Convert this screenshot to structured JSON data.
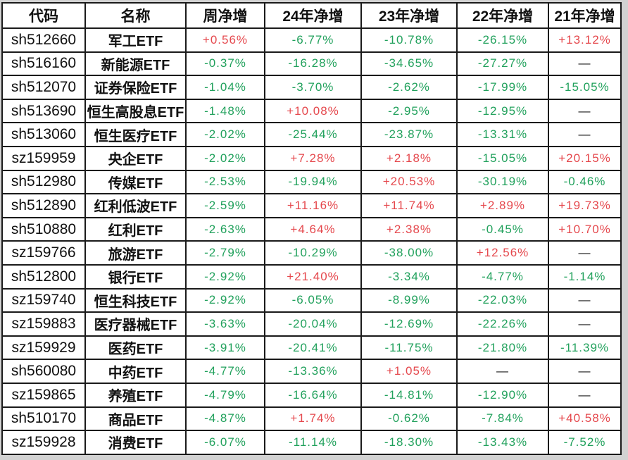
{
  "page": {
    "background_color": "#d2d2d2",
    "grid_color": "#1a1a1a",
    "cell_background": "#ffffff"
  },
  "colors": {
    "positive_text": "#e5484d",
    "negative_text": "#21a15c",
    "neutral_text": "#1a1a1a",
    "header_text": "#111111"
  },
  "table": {
    "columns": [
      "代码",
      "名称",
      "周净增",
      "24年净增",
      "23年净增",
      "22年净增",
      "21年净增"
    ],
    "missing_placeholder": "—",
    "rows": [
      {
        "code": "sh512660",
        "name": "军工ETF",
        "values": [
          "+0.56%",
          "-6.77%",
          "-10.78%",
          "-26.15%",
          "+13.12%"
        ]
      },
      {
        "code": "sh516160",
        "name": "新能源ETF",
        "values": [
          "-0.37%",
          "-16.28%",
          "-34.65%",
          "-27.27%",
          "—"
        ]
      },
      {
        "code": "sh512070",
        "name": "证券保险ETF",
        "values": [
          "-1.04%",
          "-3.70%",
          "-2.62%",
          "-17.99%",
          "-15.05%"
        ]
      },
      {
        "code": "sh513690",
        "name": "恒生高股息ETF",
        "values": [
          "-1.48%",
          "+10.08%",
          "-2.95%",
          "-12.95%",
          "—"
        ]
      },
      {
        "code": "sh513060",
        "name": "恒生医疗ETF",
        "values": [
          "-2.02%",
          "-25.44%",
          "-23.87%",
          "-13.31%",
          "—"
        ]
      },
      {
        "code": "sz159959",
        "name": "央企ETF",
        "values": [
          "-2.02%",
          "+7.28%",
          "+2.18%",
          "-15.05%",
          "+20.15%"
        ]
      },
      {
        "code": "sh512980",
        "name": "传媒ETF",
        "values": [
          "-2.53%",
          "-19.94%",
          "+20.53%",
          "-30.19%",
          "-0.46%"
        ]
      },
      {
        "code": "sh512890",
        "name": "红利低波ETF",
        "values": [
          "-2.59%",
          "+11.16%",
          "+11.74%",
          "+2.89%",
          "+19.73%"
        ]
      },
      {
        "code": "sh510880",
        "name": "红利ETF",
        "values": [
          "-2.63%",
          "+4.64%",
          "+2.38%",
          "-0.45%",
          "+10.70%"
        ]
      },
      {
        "code": "sz159766",
        "name": "旅游ETF",
        "values": [
          "-2.79%",
          "-10.29%",
          "-38.00%",
          "+12.56%",
          "—"
        ]
      },
      {
        "code": "sh512800",
        "name": "银行ETF",
        "values": [
          "-2.92%",
          "+21.40%",
          "-3.34%",
          "-4.77%",
          "-1.14%"
        ]
      },
      {
        "code": "sz159740",
        "name": "恒生科技ETF",
        "values": [
          "-2.92%",
          "-6.05%",
          "-8.99%",
          "-22.03%",
          "—"
        ]
      },
      {
        "code": "sz159883",
        "name": "医疗器械ETF",
        "values": [
          "-3.63%",
          "-20.04%",
          "-12.69%",
          "-22.26%",
          "—"
        ]
      },
      {
        "code": "sz159929",
        "name": "医药ETF",
        "values": [
          "-3.91%",
          "-20.41%",
          "-11.75%",
          "-21.80%",
          "-11.39%"
        ]
      },
      {
        "code": "sh560080",
        "name": "中药ETF",
        "values": [
          "-4.77%",
          "-13.36%",
          "+1.05%",
          "—",
          "—"
        ]
      },
      {
        "code": "sz159865",
        "name": "养殖ETF",
        "values": [
          "-4.79%",
          "-16.64%",
          "-14.81%",
          "-12.90%",
          "—"
        ]
      },
      {
        "code": "sh510170",
        "name": "商品ETF",
        "values": [
          "-4.87%",
          "+1.74%",
          "-0.62%",
          "-7.84%",
          "+40.58%"
        ]
      },
      {
        "code": "sz159928",
        "name": "消费ETF",
        "values": [
          "-6.07%",
          "-11.14%",
          "-18.30%",
          "-13.43%",
          "-7.52%"
        ]
      }
    ]
  }
}
